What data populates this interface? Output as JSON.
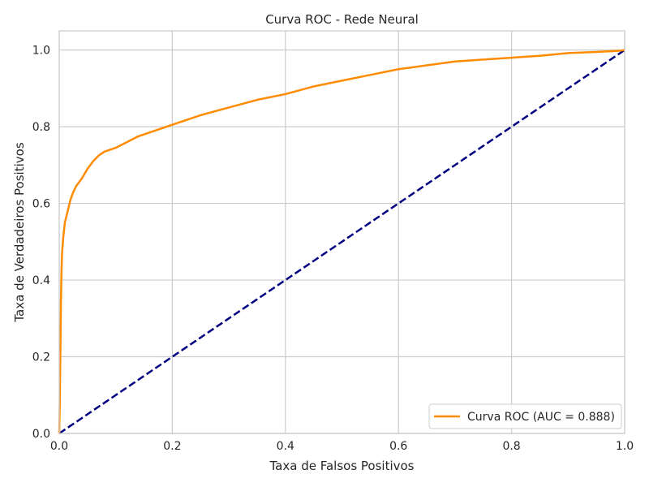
{
  "chart_data": {
    "type": "line",
    "title": "Curva ROC - Rede Neural",
    "xlabel": "Taxa de Falsos Positivos",
    "ylabel": "Taxa de Verdadeiros Positivos",
    "xlim": [
      0.0,
      1.0
    ],
    "ylim": [
      0.0,
      1.05
    ],
    "xticks": [
      "0.0",
      "0.2",
      "0.4",
      "0.6",
      "0.8",
      "1.0"
    ],
    "yticks": [
      "0.0",
      "0.2",
      "0.4",
      "0.6",
      "0.8",
      "1.0"
    ],
    "grid": true,
    "legend_position": "lower-right",
    "series": [
      {
        "name": "Curva ROC (AUC = 0.888)",
        "color": "#ff8c00",
        "style": "solid",
        "x": [
          0.0,
          0.001,
          0.002,
          0.003,
          0.004,
          0.005,
          0.007,
          0.01,
          0.015,
          0.02,
          0.025,
          0.03,
          0.04,
          0.05,
          0.06,
          0.07,
          0.08,
          0.1,
          0.12,
          0.14,
          0.16,
          0.2,
          0.25,
          0.3,
          0.35,
          0.4,
          0.45,
          0.5,
          0.55,
          0.6,
          0.65,
          0.7,
          0.75,
          0.8,
          0.85,
          0.9,
          0.95,
          0.99,
          1.0
        ],
        "y": [
          0.0,
          0.08,
          0.2,
          0.34,
          0.42,
          0.47,
          0.51,
          0.55,
          0.58,
          0.61,
          0.63,
          0.645,
          0.665,
          0.69,
          0.71,
          0.725,
          0.735,
          0.745,
          0.76,
          0.775,
          0.785,
          0.805,
          0.83,
          0.85,
          0.87,
          0.885,
          0.905,
          0.92,
          0.935,
          0.95,
          0.96,
          0.97,
          0.975,
          0.98,
          0.985,
          0.992,
          0.995,
          0.998,
          1.0
        ]
      },
      {
        "color": "#000080",
        "style": "dashed",
        "x": [
          0.0,
          1.0
        ],
        "y": [
          0.0,
          1.0
        ]
      }
    ]
  }
}
